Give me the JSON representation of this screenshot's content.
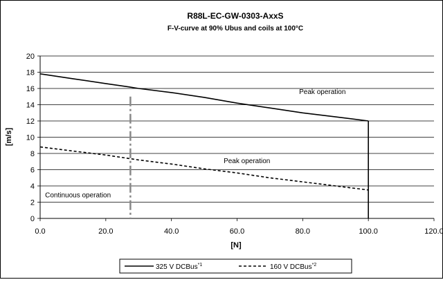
{
  "chart_data": {
    "type": "line",
    "title": "R88L-EC-GW-0303-AxxS",
    "subtitle": "F-V-curve at 90% Ubus and coils at 100°C",
    "xlabel": "[N]",
    "ylabel": "[m/s]",
    "xlim": [
      0,
      120
    ],
    "ylim": [
      0,
      20
    ],
    "x_ticks": [
      "0.0",
      "20.0",
      "40.0",
      "60.0",
      "80.0",
      "100.0",
      "120.0"
    ],
    "y_ticks": [
      "0",
      "2",
      "4",
      "6",
      "8",
      "10",
      "12",
      "14",
      "16",
      "18",
      "20"
    ],
    "grid": "horizontal",
    "legend_position": "bottom",
    "series": [
      {
        "name": "325 V DCBus",
        "sup": "*1",
        "style": "solid",
        "color": "#000000",
        "points": [
          [
            0,
            17.8
          ],
          [
            10,
            17.2
          ],
          [
            20,
            16.6
          ],
          [
            27,
            16.2
          ],
          [
            30,
            16.0
          ],
          [
            40,
            15.5
          ],
          [
            50,
            14.9
          ],
          [
            60,
            14.2
          ],
          [
            70,
            13.6
          ],
          [
            80,
            13.0
          ],
          [
            90,
            12.5
          ],
          [
            100,
            12.0
          ]
        ],
        "drop_to": 0
      },
      {
        "name": "160 V DCBus",
        "sup": "*2",
        "style": "dashed",
        "color": "#000000",
        "points": [
          [
            0,
            8.8
          ],
          [
            10,
            8.3
          ],
          [
            20,
            7.8
          ],
          [
            30,
            7.2
          ],
          [
            40,
            6.7
          ],
          [
            50,
            6.1
          ],
          [
            60,
            5.6
          ],
          [
            70,
            5.0
          ],
          [
            80,
            4.5
          ],
          [
            90,
            4.0
          ],
          [
            100,
            3.5
          ]
        ]
      }
    ],
    "continuous_limit": {
      "x": 27.5,
      "y_top": 15.0,
      "color": "#888888"
    },
    "annotations": [
      {
        "text": "Peak operation",
        "x": 86,
        "y": 15.3
      },
      {
        "text": "Peak operation",
        "x": 63,
        "y": 6.8
      },
      {
        "text": "Continuous operation",
        "x": 1.5,
        "y": 2.6
      }
    ]
  }
}
